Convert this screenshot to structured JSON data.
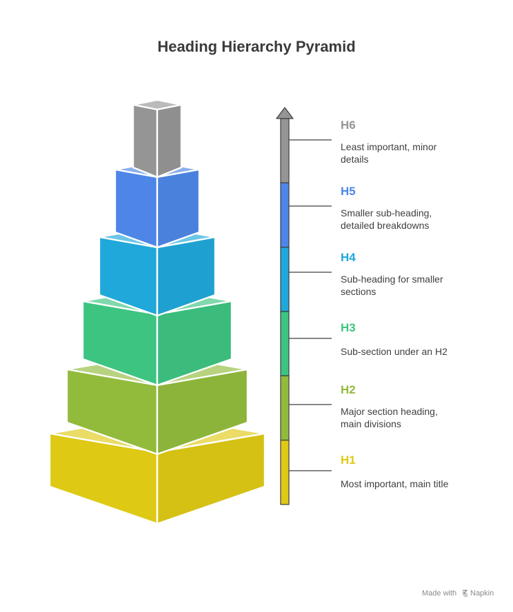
{
  "title": "Heading Hierarchy Pyramid",
  "colors": {
    "H1": "#DEC915",
    "H2": "#92BB3C",
    "H3": "#3DC481",
    "H4": "#1FA8D9",
    "H5": "#4D86E6",
    "H6": "#959595",
    "title_text": "#3a3a3a",
    "description_text": "#3f3f3f",
    "outline": "#ffffff",
    "axis_stroke": "#3d3d3d"
  },
  "levels": [
    {
      "id": "H6",
      "label": "H6",
      "description": [
        "Least important, minor",
        "details"
      ]
    },
    {
      "id": "H5",
      "label": "H5",
      "description": [
        "Smaller sub-heading,",
        "detailed breakdowns"
      ]
    },
    {
      "id": "H4",
      "label": "H4",
      "description": [
        "Sub-heading for smaller",
        "sections"
      ]
    },
    {
      "id": "H3",
      "label": "H3",
      "description": [
        "Sub-section under an H2"
      ]
    },
    {
      "id": "H2",
      "label": "H2",
      "description": [
        "Major section heading,",
        "main divisions"
      ]
    },
    {
      "id": "H1",
      "label": "H1",
      "description": [
        "Most important, main title"
      ]
    }
  ],
  "footer": {
    "made_with": "Made with",
    "brand": "Napkin",
    "brand_icon": "napkin-logo-icon"
  }
}
